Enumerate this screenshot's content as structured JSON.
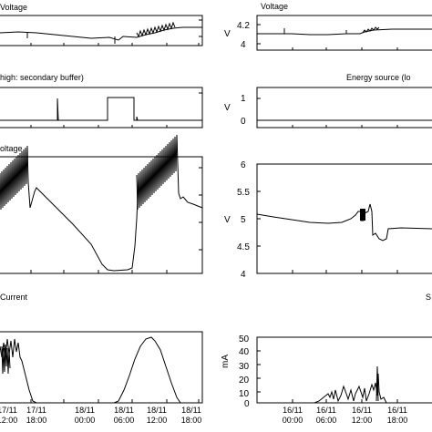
{
  "chart_data": [
    {
      "type": "line",
      "title": "Voltage",
      "xlabel": "",
      "ylabel": "",
      "series": [
        {
          "values": [
            [
              0,
              0.55
            ],
            [
              0.15,
              0.55
            ],
            [
              0.35,
              0.47
            ],
            [
              0.55,
              0.45
            ],
            [
              0.72,
              0.47
            ],
            [
              0.82,
              0.47
            ],
            [
              0.9,
              0.52
            ],
            [
              1,
              0.5
            ]
          ]
        }
      ]
    },
    {
      "type": "line",
      "title": "Voltage",
      "ylabel": "V",
      "yticks": [
        4,
        4.2
      ],
      "ylim": [
        3.93,
        4.28
      ],
      "series": [
        {
          "values": [
            [
              0,
              4.12
            ],
            [
              0.12,
              4.12
            ],
            [
              0.28,
              4.11
            ],
            [
              0.5,
              4.12
            ],
            [
              0.55,
              4.14
            ],
            [
              0.62,
              4.15
            ],
            [
              0.8,
              4.16
            ],
            [
              1,
              4.16
            ]
          ]
        }
      ]
    },
    {
      "type": "line",
      "title": "high: secondary buffer)",
      "series": [
        {
          "values": [
            [
              0,
              0
            ],
            [
              0.28,
              0
            ],
            [
              0.28,
              1
            ],
            [
              0.285,
              0
            ],
            [
              0.55,
              0
            ],
            [
              0.55,
              1
            ],
            [
              0.68,
              1
            ],
            [
              0.68,
              0
            ],
            [
              1,
              0
            ]
          ]
        }
      ]
    },
    {
      "type": "line",
      "title": "Energy source (lo",
      "ylabel": "V",
      "yticks": [
        0,
        1
      ],
      "ylim": [
        -0.2,
        1.25
      ],
      "series": [
        {
          "values": [
            [
              0,
              0
            ],
            [
              1,
              0
            ]
          ]
        }
      ]
    },
    {
      "type": "line",
      "title": "oltage",
      "series": [
        {
          "values": [
            [
              0,
              0.85
            ],
            [
              0.17,
              0.78
            ],
            [
              0.3,
              0.5
            ],
            [
              0.5,
              0.05
            ],
            [
              0.58,
              0.02
            ],
            [
              0.63,
              0.06
            ],
            [
              0.67,
              0.85
            ],
            [
              0.88,
              0.72
            ],
            [
              0.95,
              0.68
            ],
            [
              1,
              0.62
            ]
          ]
        }
      ]
    },
    {
      "type": "line",
      "ylabel": "V",
      "yticks": [
        4,
        4.5,
        5,
        5.5,
        6
      ],
      "ylim": [
        4,
        6
      ],
      "series": [
        {
          "values": [
            [
              0,
              5.08
            ],
            [
              0.2,
              5.0
            ],
            [
              0.4,
              4.94
            ],
            [
              0.55,
              4.95
            ],
            [
              0.62,
              5.0
            ],
            [
              0.7,
              5.15
            ],
            [
              0.75,
              5.3
            ],
            [
              0.77,
              4.7
            ],
            [
              0.85,
              4.62
            ],
            [
              0.9,
              4.85
            ],
            [
              1,
              4.83
            ]
          ]
        }
      ]
    },
    {
      "type": "line",
      "title": "Current",
      "xlabel": "",
      "x_ticks": [
        "17/11\n12:00",
        "17/11\n18:00",
        "18/11\n00:00",
        "18/11\n06:00",
        "18/11\n12:00",
        "18/11\n18:00"
      ],
      "series": [
        {
          "values": [
            [
              0,
              0.6
            ],
            [
              0.05,
              0.7
            ],
            [
              0.12,
              0.3
            ],
            [
              0.16,
              0
            ],
            [
              0.6,
              0
            ],
            [
              0.68,
              0.45
            ],
            [
              0.78,
              0.8
            ],
            [
              0.86,
              0.45
            ],
            [
              0.92,
              0.05
            ],
            [
              1,
              0
            ]
          ]
        }
      ]
    },
    {
      "type": "line",
      "title": "S",
      "ylabel": "mA",
      "yticks": [
        0,
        10,
        20,
        30,
        40,
        50
      ],
      "ylim": [
        0,
        50
      ],
      "x_ticks": [
        "16/11\n00:00",
        "16/11\n06:00",
        "16/11\n12:00",
        "16/11\n18:00"
      ],
      "series": [
        {
          "values": [
            [
              0,
              0
            ],
            [
              0.35,
              0
            ],
            [
              0.43,
              3
            ],
            [
              0.52,
              9
            ],
            [
              0.55,
              1
            ],
            [
              0.62,
              12
            ],
            [
              0.68,
              2
            ],
            [
              0.72,
              3
            ],
            [
              0.77,
              10
            ],
            [
              0.8,
              6
            ],
            [
              0.86,
              0
            ],
            [
              1,
              0
            ]
          ]
        }
      ]
    }
  ]
}
